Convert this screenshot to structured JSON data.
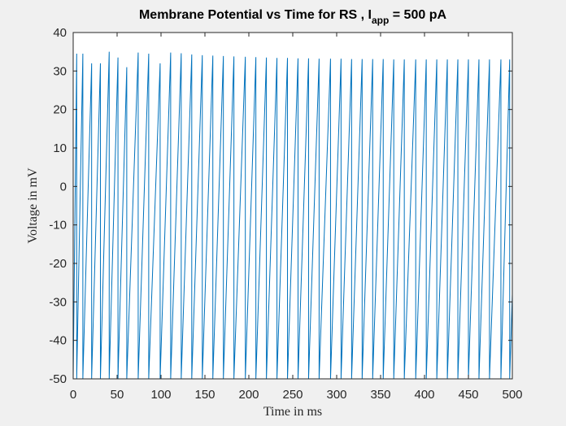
{
  "chart_data": {
    "type": "line",
    "title": {
      "prefix": "Membrane Potential vs Time for  RS , I",
      "subscript": "app",
      "suffix": " =  500  pA"
    },
    "xlabel": "Time in ms",
    "ylabel": "Voltage in mV",
    "xlim": [
      0,
      500
    ],
    "ylim": [
      -50,
      40
    ],
    "xticks": [
      0,
      50,
      100,
      150,
      200,
      250,
      300,
      350,
      400,
      450,
      500
    ],
    "yticks": [
      -50,
      -40,
      -30,
      -20,
      -10,
      0,
      10,
      20,
      30,
      40
    ],
    "grid": false,
    "legend": "none",
    "series": [
      {
        "color": "#0072BD",
        "spike_peak_mV": 33,
        "reset_mV": -50,
        "spike_times_ms": [
          4,
          11,
          21,
          31,
          41,
          51,
          61,
          74,
          86,
          99,
          111,
          123,
          135,
          147,
          159,
          171,
          183,
          196,
          208,
          220,
          232,
          244,
          256,
          268,
          280,
          293,
          305,
          317,
          329,
          341,
          353,
          365,
          377,
          390,
          402,
          414,
          426,
          438,
          450,
          462,
          474,
          487,
          497
        ],
        "spike_peaks_mV": [
          34.5,
          34.5,
          32,
          32,
          35,
          33.5,
          31,
          34.8,
          34.5,
          32,
          34.8,
          34.6,
          34.3,
          34.1,
          34,
          33.9,
          33.8,
          33.7,
          33.6,
          33.5,
          33.4,
          33.4,
          33.3,
          33.3,
          33.2,
          33.2,
          33.2,
          33.1,
          33.1,
          33.1,
          33.1,
          33,
          33,
          33,
          33,
          33,
          33,
          33,
          33,
          33,
          33,
          33,
          33
        ],
        "end_value_mV": -28
      }
    ]
  }
}
